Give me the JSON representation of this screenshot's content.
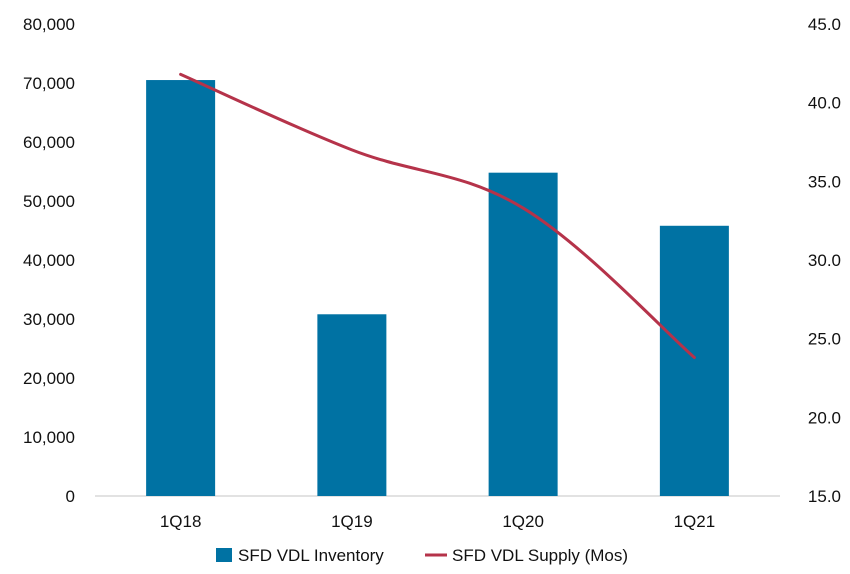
{
  "chart_data": {
    "type": "bar",
    "categories": [
      "1Q18",
      "1Q19",
      "1Q20",
      "1Q21"
    ],
    "series": [
      {
        "name": "SFD VDL Inventory",
        "type": "bar",
        "axis": "left",
        "values": [
          70500,
          30800,
          54800,
          45800
        ]
      },
      {
        "name": "SFD VDL Supply (Mos)",
        "type": "line",
        "axis": "right",
        "values": [
          41.8,
          37.0,
          33.3,
          23.8
        ]
      }
    ],
    "y_left": {
      "range": [
        0,
        80000
      ],
      "ticks": [
        "0",
        "10,000",
        "20,000",
        "30,000",
        "40,000",
        "50,000",
        "60,000",
        "70,000",
        "80,000"
      ]
    },
    "y_right": {
      "range": [
        15,
        45
      ],
      "ticks": [
        "15.0",
        "20.0",
        "25.0",
        "30.0",
        "35.0",
        "40.0",
        "45.0"
      ]
    },
    "grid": false,
    "legend_position": "bottom",
    "colors": {
      "bar": "#0072A3",
      "line": "#B5334A",
      "axis": "#d9d9d9"
    }
  }
}
